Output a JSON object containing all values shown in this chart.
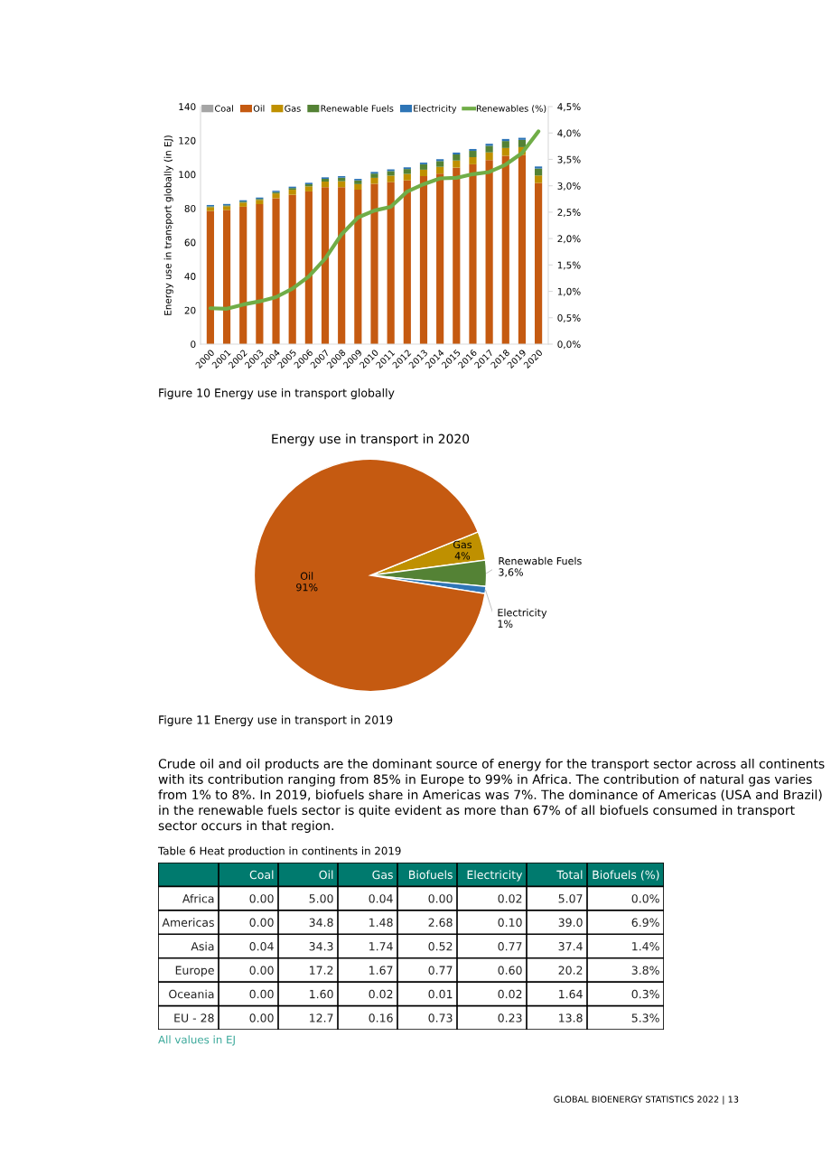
{
  "chart_data": [
    {
      "type": "bar",
      "stacked": true,
      "ylabel": "Energy use in transport globally (in EJ)",
      "categories": [
        "2000",
        "2001",
        "2002",
        "2003",
        "2004",
        "2005",
        "2006",
        "2007",
        "2008",
        "2009",
        "2010",
        "2011",
        "2012",
        "2013",
        "2014",
        "2015",
        "2016",
        "2017",
        "2018",
        "2019",
        "2020"
      ],
      "series": [
        {
          "name": "Coal",
          "color": "#a5a5a5",
          "values": [
            null,
            null,
            null,
            null,
            null,
            null,
            null,
            null,
            null,
            null,
            null,
            null,
            null,
            null,
            null,
            null,
            null,
            null,
            null,
            null,
            null
          ]
        },
        {
          "name": "Oil",
          "color": "#c55a11",
          "values": [
            78.5,
            79,
            81,
            82.5,
            86,
            88,
            90,
            92.5,
            92.5,
            91,
            94.5,
            95.5,
            96.5,
            99,
            100.5,
            104,
            106,
            108.5,
            111,
            111.5,
            95
          ]
        },
        {
          "name": "Gas",
          "color": "#bf9000",
          "values": [
            2.2,
            2.3,
            2.4,
            2.5,
            2.8,
            3.0,
            3.0,
            3.3,
            3.5,
            3.3,
            3.5,
            3.8,
            3.8,
            3.8,
            4.0,
            4.2,
            4.2,
            4.5,
            4.6,
            4.6,
            4.4
          ]
        },
        {
          "name": "Renewable Fuels",
          "color": "#548235",
          "values": [
            0.5,
            0.5,
            0.6,
            0.6,
            0.8,
            1.0,
            1.2,
            1.6,
            2.1,
            2.2,
            2.5,
            2.7,
            2.9,
            3.2,
            3.4,
            3.6,
            3.7,
            3.9,
            4.1,
            4.3,
            4.1
          ]
        },
        {
          "name": "Electricity",
          "color": "#2e75b6",
          "values": [
            0.8,
            0.8,
            0.8,
            0.8,
            0.8,
            0.8,
            0.9,
            0.9,
            0.9,
            0.9,
            1.0,
            1.0,
            1.0,
            1.0,
            1.1,
            1.1,
            1.1,
            1.2,
            1.2,
            1.2,
            1.2
          ]
        },
        {
          "name": "Renewables (%)",
          "type": "line",
          "axis": "y2",
          "color": "#70ad47",
          "values": [
            0.68,
            0.67,
            0.75,
            0.81,
            0.89,
            1.05,
            1.28,
            1.62,
            2.08,
            2.4,
            2.53,
            2.6,
            2.89,
            3.03,
            3.14,
            3.15,
            3.22,
            3.26,
            3.4,
            3.62,
            4.03
          ]
        }
      ],
      "ylim": [
        0,
        140
      ],
      "yticks": [
        0,
        20,
        40,
        60,
        80,
        100,
        120,
        140
      ],
      "y2lim": [
        0,
        4.5
      ],
      "y2ticks": [
        {
          "value": 0,
          "label": "0,0%"
        },
        {
          "value": 0.5,
          "label": "0,5%"
        },
        {
          "value": 1,
          "label": "1,0%"
        },
        {
          "value": 1.5,
          "label": "1,5%"
        },
        {
          "value": 2,
          "label": "2,0%"
        },
        {
          "value": 2.5,
          "label": "2,5%"
        },
        {
          "value": 3,
          "label": "3,0%"
        },
        {
          "value": 3.5,
          "label": "3,5%"
        },
        {
          "value": 4,
          "label": "4,0%"
        },
        {
          "value": 4.5,
          "label": "4,5%"
        }
      ],
      "legend": "top",
      "grid": false,
      "marker": "none",
      "annotations": [
        "Figure 10 Energy use in transport globally"
      ]
    },
    {
      "type": "pie",
      "title": "Energy use in transport in 2020",
      "categories": [
        "Gas",
        "Renewable Fuels",
        "Electricity",
        "Oil"
      ],
      "values": [
        4,
        3.6,
        1,
        91
      ],
      "value_labels": [
        "4%",
        "3,6%",
        "1%",
        "91%"
      ],
      "colors": [
        "#bf9000",
        "#548235",
        "#2e75b6",
        "#c55a11"
      ],
      "annotations": [
        "Figure 11 Energy use in transport in 2019"
      ]
    },
    {
      "type": "other",
      "title": "Table 6 Heat production in continents in 2019",
      "categories": [
        "Coal",
        "Oil",
        "Gas",
        "Biofuels",
        "Electricity",
        "Total",
        "Biofuels (%)"
      ],
      "y_categories": [
        "Africa",
        "Americas",
        "Asia",
        "Europe",
        "Oceania",
        "EU - 28"
      ],
      "cell_labels": [
        [
          "0.00",
          "5.00",
          "0.04",
          "0.00",
          "0.02",
          "5.07",
          "0.0%"
        ],
        [
          "0.00",
          "34.8",
          "1.48",
          "2.68",
          "0.10",
          "39.0",
          "6.9%"
        ],
        [
          "0.04",
          "34.3",
          "1.74",
          "0.52",
          "0.77",
          "37.4",
          "1.4%"
        ],
        [
          "0.00",
          "17.2",
          "1.67",
          "0.77",
          "0.60",
          "20.2",
          "3.8%"
        ],
        [
          "0.00",
          "1.60",
          "0.02",
          "0.01",
          "0.02",
          "1.64",
          "0.3%"
        ],
        [
          "0.00",
          "12.7",
          "0.16",
          "0.73",
          "0.23",
          "13.8",
          "5.3%"
        ]
      ],
      "color": "#007a6e",
      "annotations": [
        "Crude oil and oil products are the dominant source of energy for the transport sector across all continents with its contribution ranging from 85% in Europe to 99% in Africa. The contribution of natural gas varies from 1% to 8%. In 2019, biofuels share in Americas was 7%. The dominance of Americas (USA and Brazil) in the renewable fuels sector is quite evident as more than 67% of all biofuels consumed in transport sector occurs in that region.",
        "All values in EJ",
        "GLOBAL BIOENERGY STATISTICS 2022 | 13"
      ]
    }
  ]
}
